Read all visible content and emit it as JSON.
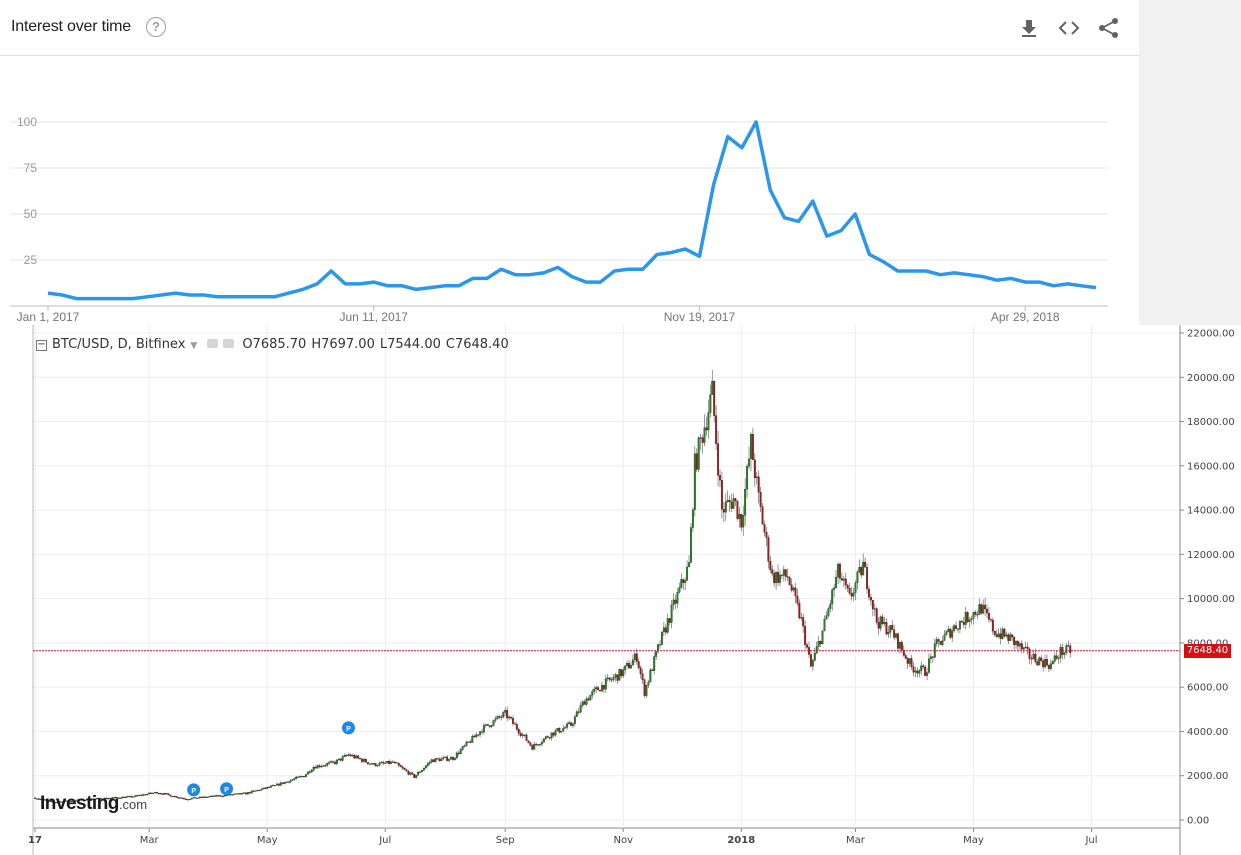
{
  "trends": {
    "title": "Interest over time",
    "help_icon": "help-circle-icon",
    "actions": [
      {
        "name": "download-icon"
      },
      {
        "name": "embed-code-icon"
      },
      {
        "name": "share-icon"
      }
    ],
    "line_color": "#2c96ea"
  },
  "btc": {
    "symbol": "BTC/USD, D, Bitfinex",
    "open": "O7685.70",
    "high": "H7697.00",
    "low": "L7544.00",
    "close": "C7648.40",
    "last_price": "7648.40",
    "logo": {
      "main": "Investing",
      "suffix": ".com"
    },
    "up_color": "#1e8a1e",
    "down_color": "#b31414"
  },
  "chart_data": [
    {
      "type": "line",
      "title": "Interest over time",
      "x_ticks": [
        "Jan 1, 2017",
        "Jun 11, 2017",
        "Nov 19, 2017",
        "Apr 29, 2018"
      ],
      "y_ticks": [
        25,
        50,
        75,
        100
      ],
      "ylim": [
        0,
        100
      ],
      "grid": true,
      "series": [
        {
          "values": [
            7,
            6,
            4,
            4,
            4,
            4,
            4,
            5,
            6,
            7,
            6,
            6,
            5,
            5,
            5,
            5,
            5,
            7,
            9,
            12,
            19,
            12,
            12,
            13,
            11,
            11,
            9,
            10,
            11,
            11,
            15,
            15,
            20,
            17,
            17,
            18,
            21,
            16,
            13,
            13,
            19,
            20,
            20,
            28,
            29,
            31,
            27,
            66,
            92,
            86,
            100,
            63,
            48,
            46,
            57,
            38,
            41,
            50,
            28,
            24,
            19,
            19,
            19,
            17,
            18,
            17,
            16,
            14,
            15,
            13,
            13,
            11,
            12,
            11,
            10
          ]
        }
      ]
    },
    {
      "type": "candlestick",
      "x_ticks": [
        "17",
        "Mar",
        "May",
        "Jul",
        "Sep",
        "Nov",
        "2018",
        "Mar",
        "May",
        "Jul"
      ],
      "y_ticks": [
        "0.00",
        "2000.00",
        "4000.00",
        "6000.00",
        "8000.00",
        "10000.00",
        "12000.00",
        "14000.00",
        "16000.00",
        "18000.00",
        "20000.00",
        "22000.00"
      ],
      "ylim": [
        0,
        22000
      ],
      "markers": [
        "P",
        "P",
        "P"
      ],
      "price_line": 7648.4,
      "close_path": [
        [
          "2017-01-01",
          1000
        ],
        [
          "2017-01-10",
          800
        ],
        [
          "2017-02-01",
          950
        ],
        [
          "2017-02-20",
          1050
        ],
        [
          "2017-03-05",
          1250
        ],
        [
          "2017-03-20",
          950
        ],
        [
          "2017-04-01",
          1050
        ],
        [
          "2017-04-20",
          1200
        ],
        [
          "2017-05-05",
          1550
        ],
        [
          "2017-05-20",
          2000
        ],
        [
          "2017-05-25",
          2400
        ],
        [
          "2017-06-05",
          2600
        ],
        [
          "2017-06-12",
          2950
        ],
        [
          "2017-06-25",
          2500
        ],
        [
          "2017-07-05",
          2600
        ],
        [
          "2017-07-16",
          1950
        ],
        [
          "2017-07-25",
          2700
        ],
        [
          "2017-08-05",
          2800
        ],
        [
          "2017-08-20",
          4100
        ],
        [
          "2017-09-01",
          4800
        ],
        [
          "2017-09-15",
          3300
        ],
        [
          "2017-09-25",
          3900
        ],
        [
          "2017-10-05",
          4300
        ],
        [
          "2017-10-12",
          5400
        ],
        [
          "2017-10-20",
          6000
        ],
        [
          "2017-11-01",
          6700
        ],
        [
          "2017-11-08",
          7400
        ],
        [
          "2017-11-12",
          5800
        ],
        [
          "2017-11-20",
          8000
        ],
        [
          "2017-11-28",
          9900
        ],
        [
          "2017-12-05",
          11500
        ],
        [
          "2017-12-08",
          16000
        ],
        [
          "2017-12-17",
          19300
        ],
        [
          "2017-12-22",
          14000
        ],
        [
          "2017-12-28",
          14500
        ],
        [
          "2018-01-01",
          13500
        ],
        [
          "2018-01-06",
          17000
        ],
        [
          "2018-01-10",
          14500
        ],
        [
          "2018-01-17",
          11000
        ],
        [
          "2018-01-25",
          11000
        ],
        [
          "2018-02-01",
          9000
        ],
        [
          "2018-02-06",
          6900
        ],
        [
          "2018-02-12",
          8500
        ],
        [
          "2018-02-20",
          11200
        ],
        [
          "2018-02-26",
          10000
        ],
        [
          "2018-03-05",
          11500
        ],
        [
          "2018-03-12",
          9000
        ],
        [
          "2018-03-20",
          8500
        ],
        [
          "2018-03-30",
          6900
        ],
        [
          "2018-04-06",
          6700
        ],
        [
          "2018-04-12",
          7900
        ],
        [
          "2018-04-22",
          8800
        ],
        [
          "2018-05-05",
          9600
        ],
        [
          "2018-05-12",
          8500
        ],
        [
          "2018-05-20",
          8200
        ],
        [
          "2018-05-30",
          7400
        ],
        [
          "2018-06-10",
          7000
        ],
        [
          "2018-06-15",
          7600
        ],
        [
          "2018-06-20",
          7648
        ]
      ]
    }
  ]
}
